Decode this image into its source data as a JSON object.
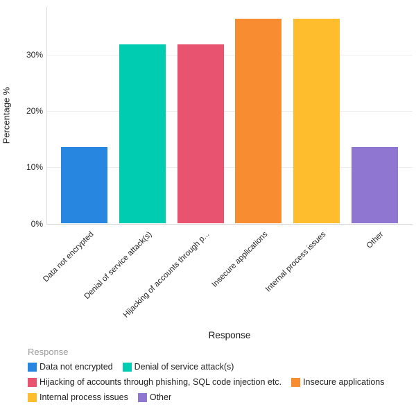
{
  "chart_data": {
    "type": "bar",
    "title": "",
    "xlabel": "Response",
    "ylabel": "Percentage %",
    "categories": [
      "Data not encrypted",
      "Denial of service attack(s)",
      "Hijacking of accounts through phishing, SQL code injection etc.",
      "Insecure applications",
      "Internal process issues",
      "Other"
    ],
    "xtick_labels": [
      "Data not encrypted",
      "Denial of service attack(s)",
      "Hijacking of accounts through p...",
      "Insecure applications",
      "Internal process issues",
      "Other"
    ],
    "values": [
      13.64,
      31.82,
      31.82,
      36.36,
      36.36,
      13.64
    ],
    "colors": [
      "#2787E0",
      "#00CCB1",
      "#E85470",
      "#F78D30",
      "#FDBD2C",
      "#8E76D1"
    ],
    "ylim": [
      0,
      38
    ],
    "yticks": [
      0,
      10,
      20,
      30
    ],
    "ytick_labels": [
      "0%",
      "10%",
      "20%",
      "30%"
    ],
    "grid": true,
    "legend_position": "bottom"
  },
  "legend": {
    "title": "Response",
    "rows": [
      [
        {
          "label": "Data not encrypted",
          "color": "#2787E0"
        },
        {
          "label": "Denial of service attack(s)",
          "color": "#00CCB1"
        }
      ],
      [
        {
          "label": "Hijacking of accounts through phishing, SQL code injection etc.",
          "color": "#E85470"
        },
        {
          "label": "Insecure applications",
          "color": "#F78D30"
        }
      ],
      [
        {
          "label": "Internal process issues",
          "color": "#FDBD2C"
        },
        {
          "label": "Other",
          "color": "#8E76D1"
        }
      ]
    ]
  }
}
